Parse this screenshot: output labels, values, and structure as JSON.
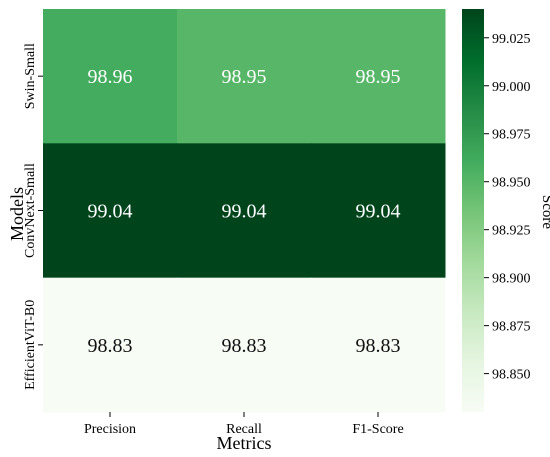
{
  "chart_data": {
    "type": "heatmap",
    "x_categories": [
      "Precision",
      "Recall",
      "F1-Score"
    ],
    "y_categories": [
      "Swin-Small",
      "ConvNext-Small",
      "EfficientViT-B0"
    ],
    "values": [
      [
        98.96,
        98.95,
        98.95
      ],
      [
        99.04,
        99.04,
        99.04
      ],
      [
        98.83,
        98.83,
        98.83
      ]
    ],
    "cell_labels": [
      [
        "98.96",
        "98.95",
        "98.95"
      ],
      [
        "99.04",
        "99.04",
        "99.04"
      ],
      [
        "98.83",
        "98.83",
        "98.83"
      ]
    ],
    "xlabel": "Metrics",
    "ylabel": "Models",
    "colorbar": {
      "label": "Score",
      "range": [
        98.83,
        99.04
      ],
      "ticks": [
        98.85,
        98.875,
        98.9,
        98.925,
        98.95,
        98.975,
        99.0,
        99.025
      ],
      "tick_labels": [
        "98.850",
        "98.875",
        "98.900",
        "98.925",
        "98.950",
        "98.975",
        "99.000",
        "99.025"
      ],
      "colormap": "Greens",
      "color_low": "#f7fcf5",
      "color_high": "#00441b"
    },
    "grid": false
  }
}
